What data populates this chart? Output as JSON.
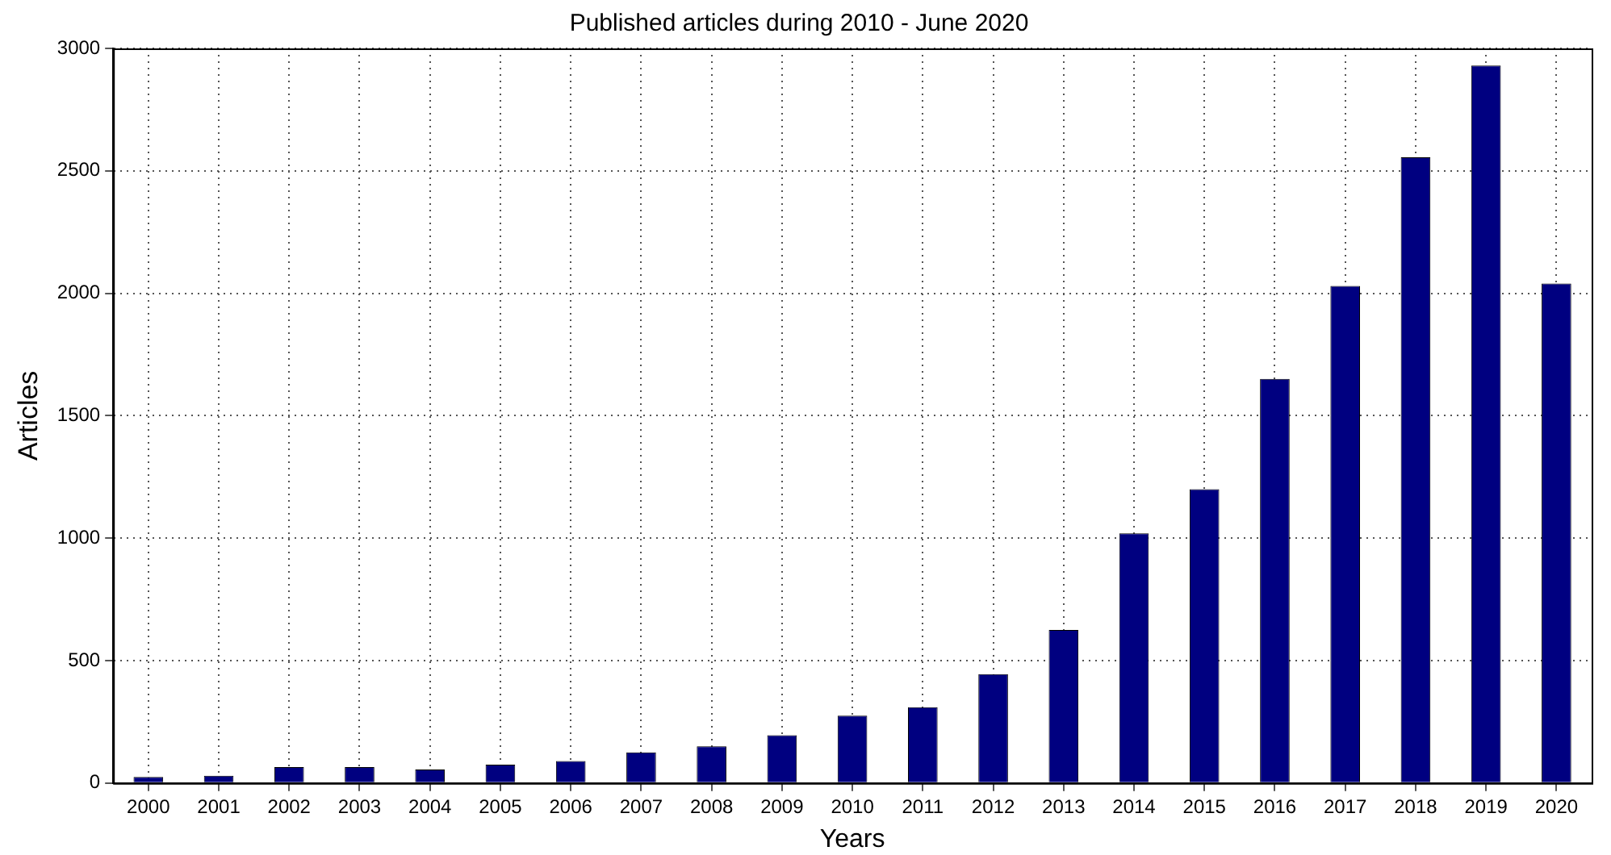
{
  "chart_data": {
    "type": "bar",
    "title": "Published articles during 2010 - June 2020",
    "xlabel": "Years",
    "ylabel": "Articles",
    "categories": [
      "2000",
      "2001",
      "2002",
      "2003",
      "2004",
      "2005",
      "2006",
      "2007",
      "2008",
      "2009",
      "2010",
      "2011",
      "2012",
      "2013",
      "2014",
      "2015",
      "2016",
      "2017",
      "2018",
      "2019",
      "2020"
    ],
    "values": [
      25,
      30,
      65,
      65,
      55,
      75,
      90,
      125,
      150,
      195,
      275,
      310,
      445,
      625,
      1020,
      1200,
      1650,
      2030,
      2555,
      2930,
      2040
    ],
    "color": "#000080",
    "ylim": [
      0,
      3000
    ],
    "yticks": [
      0,
      500,
      1000,
      1500,
      2000,
      2500,
      3000
    ],
    "grid": true
  }
}
